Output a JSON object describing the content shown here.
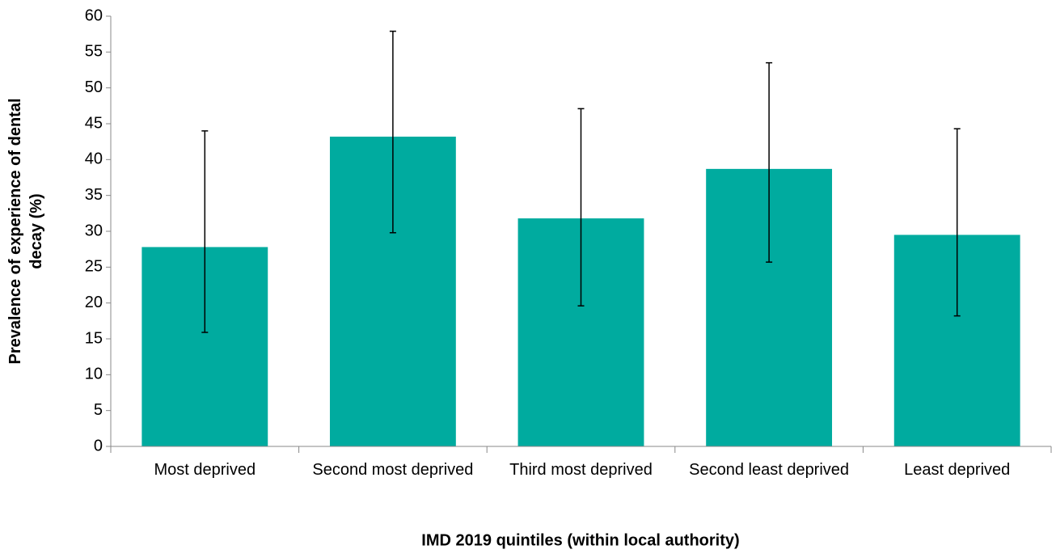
{
  "chart_data": {
    "type": "bar",
    "x_label": "IMD 2019 quintiles (within local authority)",
    "y_label": "Prevalence of experience of dental decay (%)",
    "categories": [
      "Most deprived",
      "Second most deprived",
      "Third most deprived",
      "Second least deprived",
      "Least deprived"
    ],
    "values": [
      27.8,
      43.2,
      31.8,
      38.7,
      29.5
    ],
    "error_low": [
      15.9,
      29.8,
      19.6,
      25.7,
      18.2
    ],
    "error_high": [
      44.0,
      57.9,
      47.1,
      53.5,
      44.3
    ],
    "color": "#00ab9f",
    "ylim": [
      0,
      60
    ],
    "yticks": [
      0,
      5,
      10,
      15,
      20,
      25,
      30,
      35,
      40,
      45,
      50,
      55,
      60
    ],
    "grid": false
  }
}
